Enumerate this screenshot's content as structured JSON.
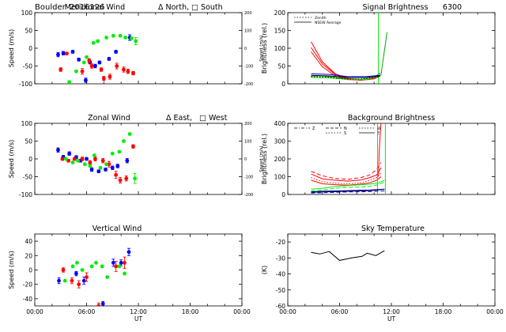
{
  "header": {
    "site": "Boulder",
    "date_code": "2016126"
  },
  "chart_data": [
    {
      "id": "meridional",
      "type": "scatter",
      "title": "Meridional Wind",
      "legend": [
        "Δ North,",
        "□ South"
      ],
      "ylabel": "Speed (m/s)",
      "ylim": [
        -100,
        100
      ],
      "yticks": [
        -100,
        -50,
        0,
        50,
        100
      ],
      "y2lim": [
        -200,
        200
      ],
      "y2ticks": [
        -200,
        -100,
        0,
        100,
        200
      ],
      "xlim": [
        0,
        24
      ],
      "xticklabels": [
        "",
        "",
        "",
        "",
        ""
      ],
      "series": [
        {
          "color": "#0000ff",
          "x": [
            2.7,
            3.3,
            4.4,
            5.1,
            5.9,
            6.4,
            7.0,
            7.5,
            8.6,
            9.4,
            11.0
          ],
          "y": [
            -18,
            -14,
            -10,
            -32,
            -90,
            -40,
            -50,
            -40,
            -30,
            -10,
            30
          ],
          "err": [
            6,
            5,
            4,
            4,
            6,
            4,
            5,
            4,
            4,
            4,
            8
          ]
        },
        {
          "color": "#ff0000",
          "x": [
            3.0,
            3.7,
            5.5,
            6.3,
            6.6,
            7.7,
            8.0,
            8.7,
            9.5,
            10.3,
            10.8,
            11.4
          ],
          "y": [
            -60,
            -15,
            -65,
            -35,
            -50,
            -60,
            -85,
            -80,
            -50,
            -60,
            -65,
            -70
          ],
          "err": [
            5,
            4,
            8,
            6,
            6,
            5,
            6,
            7,
            8,
            7,
            6,
            5
          ]
        },
        {
          "color": "#00ee00",
          "x": [
            4.0,
            4.8,
            5.7,
            6.0,
            6.8,
            7.3,
            8.3,
            9.1,
            9.9,
            10.5,
            11.2,
            11.7
          ],
          "y": [
            -95,
            -65,
            -40,
            -25,
            15,
            20,
            30,
            35,
            35,
            30,
            28,
            20
          ],
          "err": [
            0,
            0,
            0,
            0,
            0,
            0,
            0,
            0,
            0,
            0,
            0,
            10
          ]
        }
      ]
    },
    {
      "id": "zonal",
      "type": "scatter",
      "title": "Zonal Wind",
      "legend": [
        "Δ East,",
        "□ West"
      ],
      "ylabel": "Speed (m/s)",
      "ylim": [
        -100,
        100
      ],
      "yticks": [
        -100,
        -50,
        0,
        50,
        100
      ],
      "y2lim": [
        -200,
        200
      ],
      "y2ticks": [
        -200,
        -100,
        0,
        100,
        200
      ],
      "xlim": [
        0,
        24
      ],
      "xticklabels": [
        "",
        "",
        "",
        "",
        ""
      ],
      "series": [
        {
          "color": "#0000ff",
          "x": [
            2.7,
            3.3,
            4.0,
            4.8,
            5.3,
            6.0,
            6.6,
            7.4,
            8.2,
            9.0,
            9.6,
            10.7
          ],
          "y": [
            25,
            5,
            15,
            5,
            -5,
            0,
            -30,
            -35,
            -30,
            -25,
            -20,
            -5
          ],
          "err": [
            6,
            5,
            5,
            4,
            4,
            4,
            5,
            4,
            4,
            5,
            5,
            6
          ]
        },
        {
          "color": "#ff0000",
          "x": [
            3.2,
            3.9,
            4.6,
            5.5,
            6.4,
            7.0,
            7.9,
            8.6,
            9.4,
            9.9,
            10.6,
            11.4
          ],
          "y": [
            0,
            -5,
            0,
            0,
            -10,
            0,
            -5,
            -15,
            -45,
            -60,
            -55,
            35
          ],
          "err": [
            4,
            4,
            4,
            5,
            5,
            6,
            6,
            8,
            10,
            8,
            7,
            5
          ]
        },
        {
          "color": "#00ee00",
          "x": [
            3.6,
            4.4,
            5.0,
            5.8,
            6.4,
            6.9,
            7.6,
            8.3,
            9.0,
            9.8,
            10.3,
            11.0,
            11.6
          ],
          "y": [
            0,
            -10,
            -5,
            -15,
            -20,
            10,
            -25,
            -15,
            15,
            20,
            50,
            70,
            -55
          ],
          "err": [
            0,
            0,
            0,
            0,
            0,
            0,
            0,
            0,
            0,
            0,
            0,
            0,
            14
          ]
        }
      ]
    },
    {
      "id": "vertical",
      "type": "scatter",
      "title": "Vertical Wind",
      "ylabel": "Speed (m/s)",
      "ylim": [
        -50,
        50
      ],
      "yticks": [
        -40,
        -20,
        0,
        20,
        40
      ],
      "xlim": [
        0,
        24
      ],
      "xlabel": "UT",
      "xticklabels": [
        "00:00",
        "06:00",
        "12:00",
        "18:00",
        "00:00"
      ],
      "series": [
        {
          "color": "#0000ff",
          "x": [
            2.8,
            4.8,
            5.7,
            7.9,
            9.1,
            10.0,
            10.9
          ],
          "y": [
            -15,
            -5,
            -15,
            -47,
            10,
            10,
            25
          ],
          "err": [
            4,
            3,
            5,
            3,
            5,
            4,
            5
          ]
        },
        {
          "color": "#ff0000",
          "x": [
            3.3,
            4.3,
            5.1,
            6.0,
            7.4,
            9.4,
            10.4
          ],
          "y": [
            0,
            -15,
            -20,
            -10,
            -50,
            5,
            10
          ],
          "err": [
            3,
            4,
            5,
            6,
            4,
            7,
            8
          ]
        },
        {
          "color": "#00ee00",
          "x": [
            3.5,
            4.4,
            4.9,
            5.5,
            6.6,
            7.1,
            7.8,
            8.4,
            9.8,
            10.4
          ],
          "y": [
            -15,
            5,
            10,
            0,
            5,
            10,
            5,
            -10,
            5,
            -5
          ],
          "err": [
            0,
            0,
            0,
            0,
            0,
            0,
            0,
            0,
            0,
            0
          ]
        }
      ]
    },
    {
      "id": "signal",
      "type": "line",
      "title": "Signal Brightness",
      "wavelength": "6300",
      "legend_entries": [
        "Zenith",
        "NSEW Average"
      ],
      "ylabel": "Brightness (rel.)",
      "ylim": [
        0,
        200
      ],
      "yticks": [
        0,
        50,
        100,
        150,
        200
      ],
      "xlim": [
        0,
        24
      ],
      "xticklabels": [
        "",
        "",
        "",
        "",
        ""
      ],
      "series": [
        {
          "color": "#ff0000",
          "style": "solid",
          "x": [
            2.7,
            4,
            5.5,
            7,
            8.5,
            10,
            10.7
          ],
          "y": [
            118,
            62,
            28,
            15,
            12,
            18,
            30
          ]
        },
        {
          "color": "#ff0000",
          "style": "solid",
          "x": [
            2.7,
            4,
            5.5,
            7,
            8.5,
            10,
            10.7
          ],
          "y": [
            102,
            56,
            26,
            14,
            11,
            16,
            25
          ]
        },
        {
          "color": "#ff0000",
          "style": "solid",
          "x": [
            2.7,
            4,
            5.5,
            7,
            8.5,
            10,
            10.7
          ],
          "y": [
            90,
            48,
            22,
            12,
            10,
            14,
            22
          ]
        },
        {
          "color": "#00aa00",
          "style": "solid",
          "x": [
            2.7,
            4,
            5.5,
            7,
            8.5,
            10,
            10.8,
            11.5
          ],
          "y": [
            22,
            22,
            18,
            12,
            12,
            18,
            25,
            145
          ]
        },
        {
          "color": "#00ee00",
          "style": "solid",
          "x": [
            10.5,
            10.5
          ],
          "y": [
            0,
            200
          ]
        },
        {
          "color": "#00ee00",
          "style": "solid",
          "x": [
            2.7,
            5,
            7,
            9,
            10.5
          ],
          "y": [
            18,
            16,
            12,
            12,
            20
          ]
        },
        {
          "color": "#000000",
          "style": "dotted",
          "x": [
            2.7,
            5,
            7,
            9,
            10.7
          ],
          "y": [
            20,
            18,
            13,
            15,
            20
          ]
        },
        {
          "color": "#000000",
          "style": "solid",
          "x": [
            2.7,
            5,
            7,
            9,
            10.7
          ],
          "y": [
            24,
            22,
            18,
            18,
            22
          ]
        },
        {
          "color": "#0000ff",
          "style": "solid",
          "x": [
            2.7,
            5,
            7,
            9,
            10.7
          ],
          "y": [
            28,
            26,
            20,
            20,
            24
          ]
        }
      ]
    },
    {
      "id": "background",
      "type": "line",
      "title": "Background Brightness",
      "legend_entries": [
        "Z",
        "N",
        "S",
        "W",
        "E"
      ],
      "ylabel": "Brightness (rel.)",
      "ylim": [
        0,
        400
      ],
      "yticks": [
        0,
        100,
        200,
        300,
        400
      ],
      "xlim": [
        0,
        24
      ],
      "xticklabels": [
        "",
        "",
        "",
        "",
        ""
      ],
      "series": [
        {
          "color": "#ff0000",
          "style": "dashed",
          "x": [
            2.7,
            4,
            5.5,
            7,
            8.5,
            9.5,
            10.3,
            10.8
          ],
          "y": [
            130,
            105,
            90,
            85,
            95,
            110,
            140,
            180
          ]
        },
        {
          "color": "#ff0000",
          "style": "solid",
          "x": [
            2.7,
            4,
            5.5,
            7,
            8.5,
            9.5,
            10.3,
            10.8
          ],
          "y": [
            115,
            88,
            80,
            75,
            82,
            95,
            110,
            150
          ]
        },
        {
          "color": "#ff0000",
          "style": "dotted",
          "x": [
            2.7,
            4,
            5.5,
            7,
            8.5,
            9.5,
            10.3,
            10.8
          ],
          "y": [
            95,
            72,
            64,
            60,
            66,
            80,
            95,
            120
          ]
        },
        {
          "color": "#ff0000",
          "style": "solid",
          "x": [
            2.7,
            4,
            5.5,
            7,
            8.5,
            9.5,
            10.3,
            10.8
          ],
          "y": [
            80,
            60,
            55,
            52,
            58,
            66,
            80,
            100
          ]
        },
        {
          "color": "#ff0000",
          "style": "solid",
          "x": [
            10.5,
            10.6,
            10.7,
            10.8
          ],
          "y": [
            100,
            250,
            330,
            400
          ]
        },
        {
          "color": "#00ee00",
          "style": "solid",
          "x": [
            2.7,
            4,
            5.5,
            7,
            8.5,
            9.5,
            10.5,
            11.2
          ],
          "y": [
            30,
            35,
            45,
            50,
            55,
            58,
            65,
            80
          ]
        },
        {
          "color": "#00ee00",
          "style": "dashed",
          "x": [
            2.7,
            4,
            5.5,
            7,
            8.5,
            9.5,
            10.5,
            11.2
          ],
          "y": [
            20,
            25,
            35,
            40,
            42,
            45,
            55,
            70
          ]
        },
        {
          "color": "#00ee00",
          "style": "solid",
          "x": [
            10.4,
            10.4
          ],
          "y": [
            0,
            400
          ]
        },
        {
          "color": "#00ee00",
          "style": "solid",
          "x": [
            11.3,
            11.3
          ],
          "y": [
            0,
            400
          ]
        },
        {
          "color": "#0000ff",
          "style": "solid",
          "x": [
            2.7,
            4,
            5.5,
            7,
            8.5,
            9.5,
            10.5,
            11.2
          ],
          "y": [
            15,
            18,
            20,
            22,
            24,
            25,
            28,
            30
          ]
        },
        {
          "color": "#0000ff",
          "style": "dashed",
          "x": [
            2.7,
            4,
            5.5,
            7,
            8.5,
            9.5,
            10.5,
            11.2
          ],
          "y": [
            8,
            10,
            12,
            14,
            15,
            16,
            18,
            20
          ]
        },
        {
          "color": "#000000",
          "style": "solid",
          "x": [
            2.7,
            4,
            5.5,
            7,
            8.5,
            9.5,
            10.5,
            11.2
          ],
          "y": [
            12,
            14,
            16,
            18,
            20,
            22,
            26,
            30
          ]
        }
      ]
    },
    {
      "id": "skytemp",
      "type": "line",
      "title": "Sky Temperature",
      "ylabel": "(K)",
      "ylim": [
        -60,
        -15
      ],
      "yticks": [
        -60,
        -50,
        -40,
        -30,
        -20
      ],
      "xlim": [
        0,
        24
      ],
      "xlabel": "UT",
      "xticklabels": [
        "00:00",
        "06:00",
        "12:00",
        "18:00",
        "00:00"
      ],
      "series": [
        {
          "color": "#000000",
          "style": "solid",
          "x": [
            2.7,
            3.7,
            4.8,
            6.0,
            7.4,
            8.6,
            9.2,
            10.2,
            11.2
          ],
          "y": [
            -26.5,
            -27.5,
            -26,
            -31.5,
            -30,
            -29,
            -27,
            -28.5,
            -25.5
          ]
        }
      ]
    }
  ]
}
